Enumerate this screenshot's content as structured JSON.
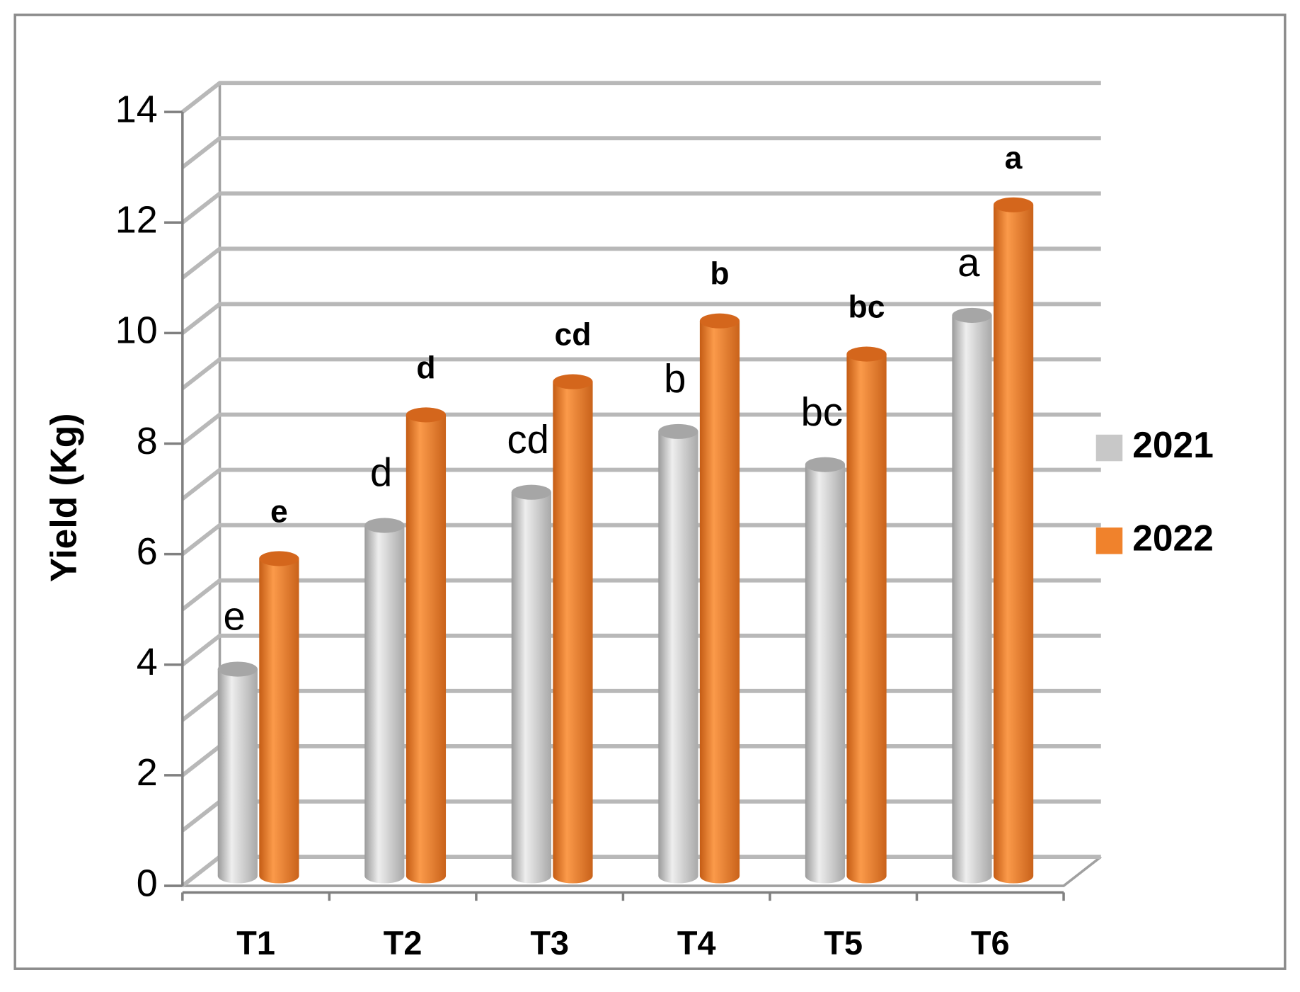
{
  "chart_data": {
    "type": "bar3d",
    "y_label": "Yield (Kg)",
    "categories": [
      "T1",
      "T2",
      "T3",
      "T4",
      "T5",
      "T6"
    ],
    "series": [
      {
        "name": "2021",
        "color": "#c8c8c8",
        "values": [
          3.8,
          6.4,
          7.0,
          8.1,
          7.5,
          10.2
        ],
        "significance_letters": [
          "e",
          "d",
          "cd",
          "b",
          "bc",
          "a"
        ]
      },
      {
        "name": "2022",
        "color": "#f0822c",
        "values": [
          5.8,
          8.4,
          9.0,
          10.1,
          9.5,
          12.2
        ],
        "significance_letters": [
          "e",
          "d",
          "cd",
          "b",
          "bc",
          "a"
        ]
      }
    ],
    "ylim": [
      0,
      14
    ],
    "yticks": [
      0,
      2,
      4,
      6,
      8,
      10,
      12,
      14
    ],
    "grid": true,
    "legend": "right"
  }
}
